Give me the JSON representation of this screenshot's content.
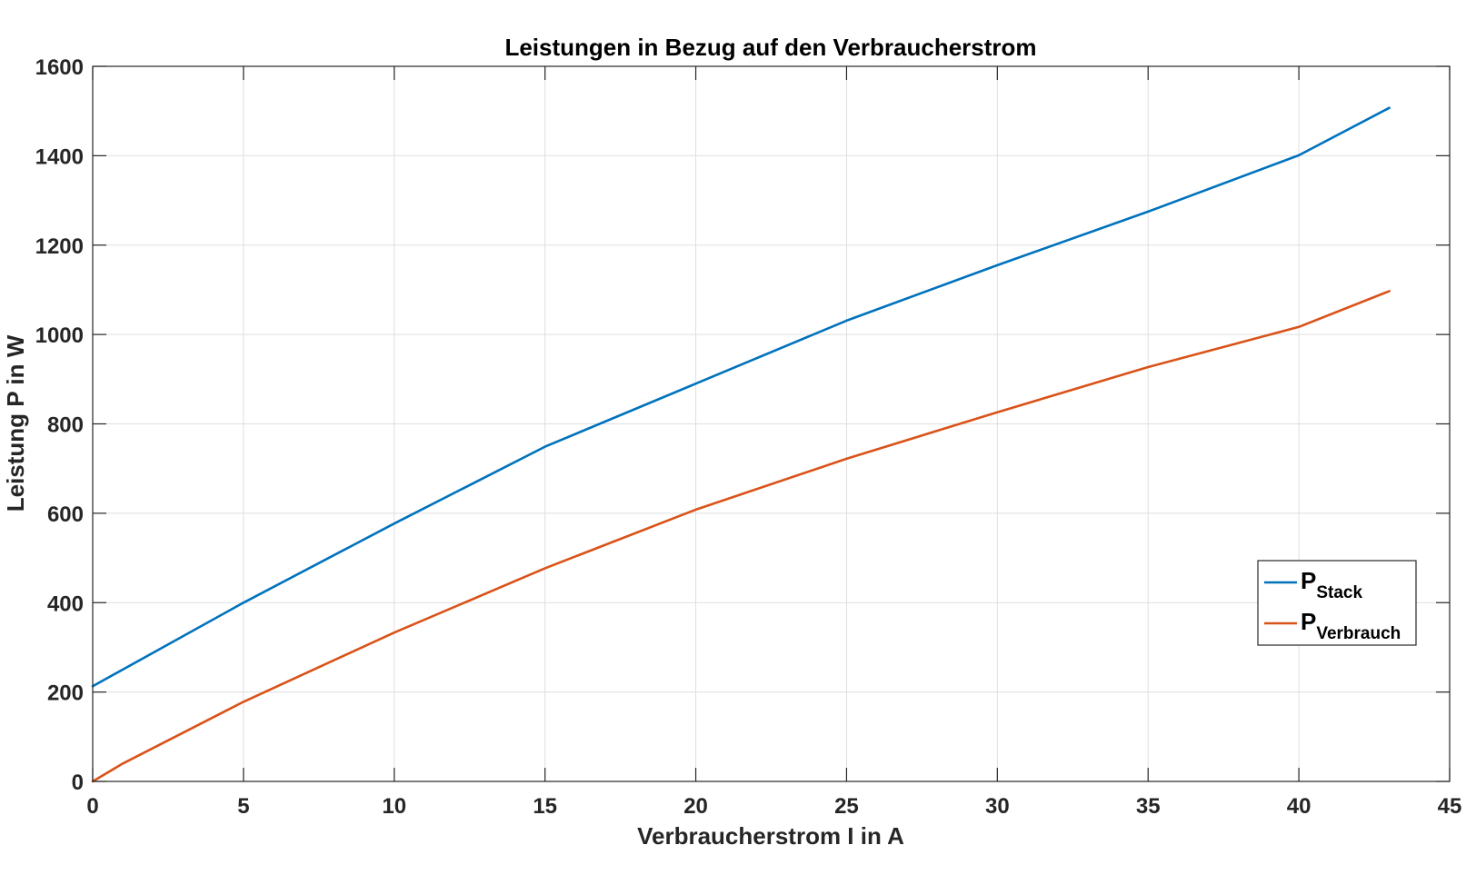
{
  "chart_data": {
    "type": "line",
    "title": "Leistungen in Bezug auf den Verbraucherstrom",
    "xlabel": "Verbraucherstrom I in A",
    "ylabel": "Leistung P in W",
    "xlim": [
      0,
      45
    ],
    "ylim": [
      0,
      1600
    ],
    "xticks": [
      0,
      5,
      10,
      15,
      20,
      25,
      30,
      35,
      40,
      45
    ],
    "yticks": [
      0,
      200,
      400,
      600,
      800,
      1000,
      1200,
      1400,
      1600
    ],
    "grid": true,
    "legend_position": "right",
    "series": [
      {
        "name": "P",
        "name_sub": "Stack",
        "color": "#0072BD",
        "x": [
          0,
          5,
          10,
          15,
          20,
          25,
          30,
          35,
          40,
          43
        ],
        "y": [
          213,
          400,
          577,
          749,
          890,
          1031,
          1155,
          1275,
          1401,
          1507
        ]
      },
      {
        "name": "P",
        "name_sub": "Verbrauch",
        "color": "#D95319",
        "x": [
          0,
          1,
          5,
          10,
          15,
          20,
          25,
          30,
          35,
          40,
          43
        ],
        "y": [
          0,
          40,
          178,
          333,
          477,
          608,
          722,
          826,
          927,
          1017,
          1097
        ]
      }
    ]
  }
}
